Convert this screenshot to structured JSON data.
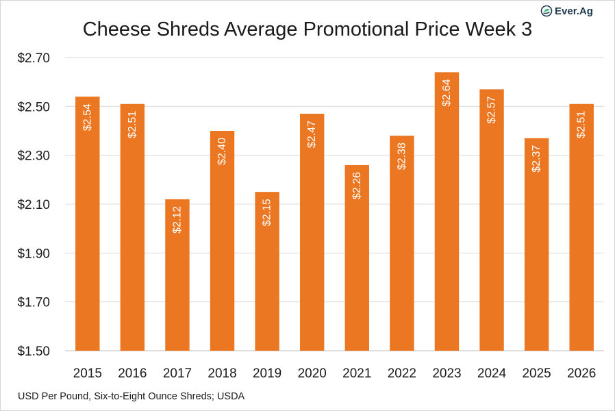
{
  "logo": {
    "text": "Ever.Ag",
    "icon": "ever-ag-leaf-icon"
  },
  "source": "USD Per Pound, Six-to-Eight Ounce Shreds; USDA",
  "chart_data": {
    "type": "bar",
    "title": "Cheese Shreds Average Promotional Price Week 3",
    "xlabel": "",
    "ylabel": "",
    "categories": [
      "2015",
      "2016",
      "2017",
      "2018",
      "2019",
      "2020",
      "2021",
      "2022",
      "2023",
      "2024",
      "2025",
      "2026"
    ],
    "values": [
      2.54,
      2.51,
      2.12,
      2.4,
      2.15,
      2.47,
      2.26,
      2.38,
      2.64,
      2.57,
      2.37,
      2.51
    ],
    "data_labels": [
      "$2.54",
      "$2.51",
      "$2.12",
      "$2.40",
      "$2.15",
      "$2.47",
      "$2.26",
      "$2.38",
      "$2.64",
      "$2.57",
      "$2.37",
      "$2.51"
    ],
    "yticks": [
      1.5,
      1.7,
      1.9,
      2.1,
      2.3,
      2.5,
      2.7
    ],
    "ytick_labels": [
      "$1.50",
      "$1.70",
      "$1.90",
      "$2.10",
      "$2.30",
      "$2.50",
      "$2.70"
    ],
    "ylim": [
      1.5,
      2.7
    ],
    "grid": true,
    "legend": "none",
    "colors": {
      "bar": "#ec7723",
      "grid": "#d9d9d9",
      "axis": "#bfbfbf",
      "label": "#ffffff",
      "logo": "#1f3b4d",
      "logo_accent": "#2bb673"
    }
  }
}
